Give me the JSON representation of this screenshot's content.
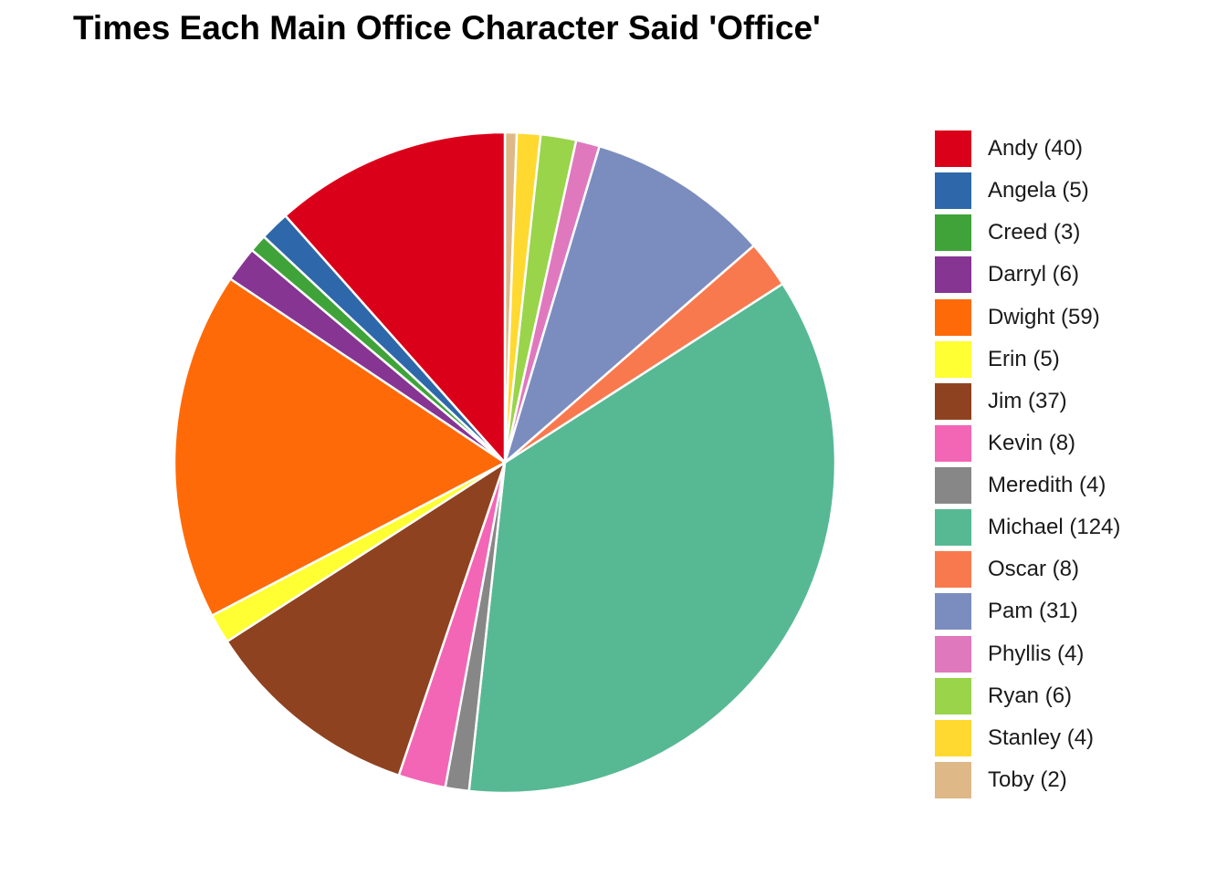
{
  "chart_data": {
    "type": "pie",
    "title": "Times Each Main Office Character Said 'Office'",
    "legend_position": "right",
    "direction": "clockwise",
    "start": "top",
    "slices": [
      {
        "label": "Toby",
        "legend_label": "Toby (2)",
        "value": 2,
        "color": "#DEB887"
      },
      {
        "label": "Stanley",
        "legend_label": "Stanley (4)",
        "value": 4,
        "color": "#FFD92F"
      },
      {
        "label": "Ryan",
        "legend_label": "Ryan (6)",
        "value": 6,
        "color": "#99D44A"
      },
      {
        "label": "Phyllis",
        "legend_label": "Phyllis (4)",
        "value": 4,
        "color": "#E078BE"
      },
      {
        "label": "Pam",
        "legend_label": "Pam (31)",
        "value": 31,
        "color": "#7B8DBF"
      },
      {
        "label": "Oscar",
        "legend_label": "Oscar (8)",
        "value": 8,
        "color": "#F9794F"
      },
      {
        "label": "Michael",
        "legend_label": "Michael (124)",
        "value": 124,
        "color": "#57B994"
      },
      {
        "label": "Meredith",
        "legend_label": "Meredith (4)",
        "value": 4,
        "color": "#878787"
      },
      {
        "label": "Kevin",
        "legend_label": "Kevin (8)",
        "value": 8,
        "color": "#F366B5"
      },
      {
        "label": "Jim",
        "legend_label": "Jim (37)",
        "value": 37,
        "color": "#8F421F"
      },
      {
        "label": "Erin",
        "legend_label": "Erin (5)",
        "value": 5,
        "color": "#FFFF33"
      },
      {
        "label": "Dwight",
        "legend_label": "Dwight (59)",
        "value": 59,
        "color": "#FF6A08"
      },
      {
        "label": "Darryl",
        "legend_label": "Darryl (6)",
        "value": 6,
        "color": "#863593"
      },
      {
        "label": "Creed",
        "legend_label": "Creed (3)",
        "value": 3,
        "color": "#3FA33A"
      },
      {
        "label": "Angela",
        "legend_label": "Angela (5)",
        "value": 5,
        "color": "#2E68AA"
      },
      {
        "label": "Andy",
        "legend_label": "Andy (40)",
        "value": 40,
        "color": "#DB001A"
      }
    ],
    "legend_order": [
      "Andy",
      "Angela",
      "Creed",
      "Darryl",
      "Dwight",
      "Erin",
      "Jim",
      "Kevin",
      "Meredith",
      "Michael",
      "Oscar",
      "Pam",
      "Phyllis",
      "Ryan",
      "Stanley",
      "Toby"
    ]
  }
}
